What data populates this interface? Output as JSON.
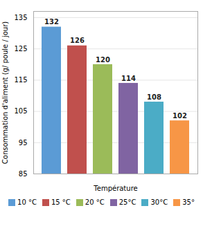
{
  "chart_data": {
    "type": "bar",
    "categories": [
      "10 °C",
      "15 °C",
      "20 °C",
      "25°C",
      "30°C",
      "35°"
    ],
    "values": [
      132,
      126,
      120,
      114,
      108,
      102
    ],
    "colors": [
      "#5B9BD5",
      "#C0504D",
      "#9BBB59",
      "#8064A2",
      "#4BACC6",
      "#F79646"
    ],
    "xlabel": "Température",
    "ylabel": "Consommation d'aliment (g/ poule / jour)",
    "ylim": [
      85,
      137
    ],
    "yticks": [
      85,
      95,
      105,
      115,
      125,
      135
    ],
    "grid": true,
    "data_labels": true,
    "tick_labels": "y",
    "legend": "bottom"
  }
}
